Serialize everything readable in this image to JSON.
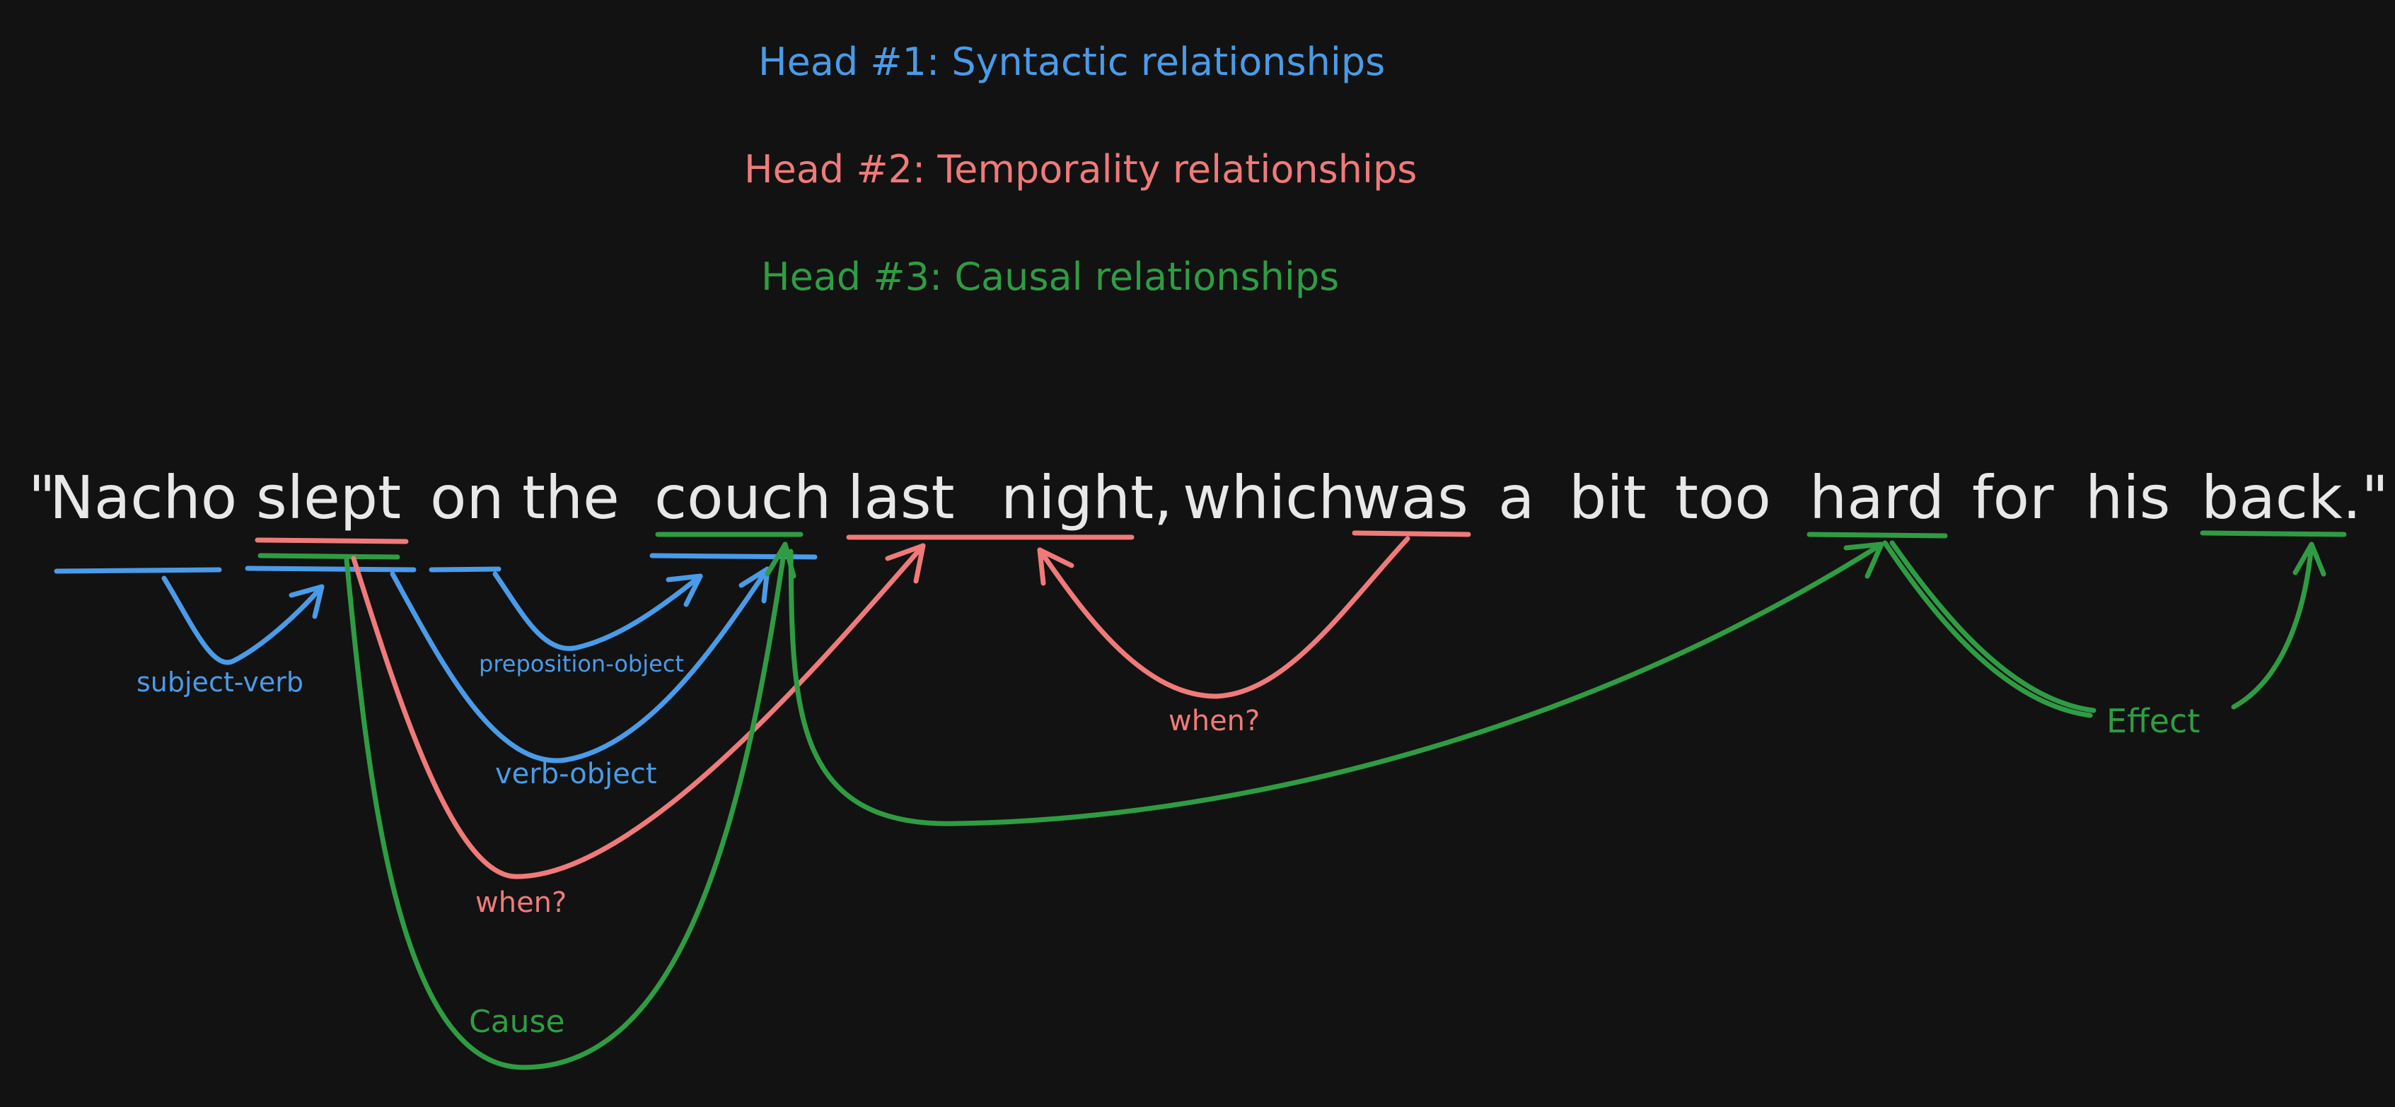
{
  "colors": {
    "background": "#121212",
    "text": "#e8e8e8",
    "syntactic": "#4a9be8",
    "temporality": "#f07a7a",
    "causal": "#2f9c43"
  },
  "legend": {
    "head1": "Head #1: Syntactic relationships",
    "head2": "Head #2: Temporality relationships",
    "head3": "Head #3: Causal relationships"
  },
  "sentence": {
    "quote_open": "\"",
    "words": [
      "Nacho",
      "slept",
      "on",
      "the",
      "couch",
      "last",
      "night,",
      "which",
      "was",
      "a",
      "bit",
      "too",
      "hard",
      "for",
      "his",
      "back.\""
    ]
  },
  "relations": {
    "syntactic": [
      {
        "label": "subject-verb",
        "from": "Nacho",
        "to": "slept"
      },
      {
        "label": "preposition-object",
        "from": "on",
        "to": "couch"
      },
      {
        "label": "verb-object",
        "from": "slept",
        "to": "couch"
      }
    ],
    "temporality": [
      {
        "label": "when?",
        "from": "slept",
        "to": "last night"
      },
      {
        "label": "when?",
        "from": "was",
        "to": "last night"
      }
    ],
    "causal": [
      {
        "label": "Cause",
        "from": "slept",
        "to": "couch"
      },
      {
        "label": "Effect",
        "from": "hard",
        "to": "back"
      }
    ]
  }
}
